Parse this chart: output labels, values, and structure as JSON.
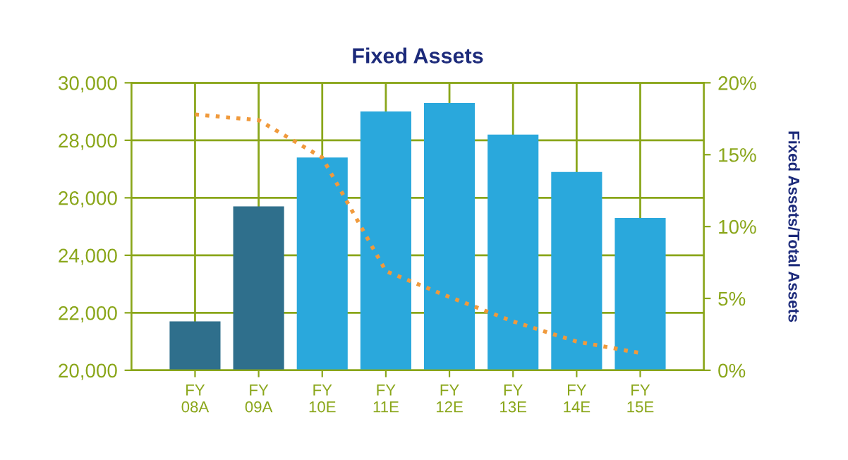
{
  "chart_data": {
    "type": "bar",
    "title": "Fixed Assets",
    "y2label": "Fixed Assets/Total Assets",
    "categories": [
      "FY\n08A",
      "FY\n09A",
      "FY\n10E",
      "FY\n11E",
      "FY\n12E",
      "FY\n13E",
      "FY\n14E",
      "FY\n15E"
    ],
    "series": [
      {
        "colors": [
          "#2f6f8c",
          "#2f6f8c",
          "#2aa8dc",
          "#2aa8dc",
          "#2aa8dc",
          "#2aa8dc",
          "#2aa8dc",
          "#2aa8dc"
        ],
        "values": [
          21700,
          25700,
          27400,
          29000,
          29300,
          28200,
          26900,
          25300
        ]
      },
      {
        "type": "line",
        "axis": "y2",
        "color": "#f09a3c",
        "line_style": "dotted",
        "values": [
          17.8,
          17.4,
          14.8,
          6.9,
          5.1,
          3.4,
          2.0,
          1.2
        ]
      }
    ],
    "ylim": [
      20000,
      30000
    ],
    "yticks": [
      {
        "value": 20000,
        "label": "20,000"
      },
      {
        "value": 22000,
        "label": "22,000"
      },
      {
        "value": 24000,
        "label": "24,000"
      },
      {
        "value": 26000,
        "label": "26,000"
      },
      {
        "value": 28000,
        "label": "28,000"
      },
      {
        "value": 30000,
        "label": "30,000"
      }
    ],
    "y2lim": [
      0,
      20
    ],
    "y2ticks": [
      {
        "value": 0,
        "label": "0%"
      },
      {
        "value": 5,
        "label": "5%"
      },
      {
        "value": 10,
        "label": "10%"
      },
      {
        "value": 15,
        "label": "15%"
      },
      {
        "value": 20,
        "label": "20%"
      }
    ],
    "grid": true
  }
}
